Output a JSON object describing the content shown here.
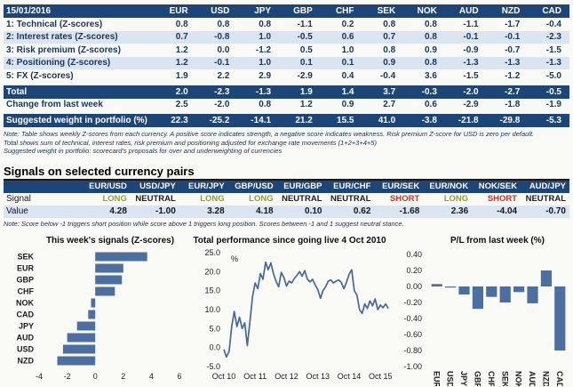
{
  "colors": {
    "navy_header": "#1e4577",
    "row_alt": "#dbe5f1",
    "text_navy": "#17365c",
    "bar_blue": "#4d6f9f",
    "line_blue": "#46689b",
    "long_green": "#8f9d3a",
    "short_red": "#c43528",
    "neutral_dark": "#1c1c24"
  },
  "scorecard": {
    "date": "15/01/2016",
    "currencies": [
      "EUR",
      "USD",
      "JPY",
      "GBP",
      "CHF",
      "SEK",
      "NOK",
      "AUD",
      "NZD",
      "CAD"
    ],
    "rows": [
      {
        "label": "1: Technical (Z-scores)",
        "values": [
          "0.8",
          "0.8",
          "0.8",
          "-1.1",
          "0.2",
          "0.8",
          "0.8",
          "-1.1",
          "-1.7",
          "-0.4"
        ]
      },
      {
        "label": "2: Interest rates (Z-scores)",
        "values": [
          "0.7",
          "-0.8",
          "1.0",
          "-0.5",
          "0.6",
          "0.7",
          "0.8",
          "-0.1",
          "-0.1",
          "-2.3"
        ]
      },
      {
        "label": "3: Risk premium (Z-scores)",
        "values": [
          "1.2",
          "0.0",
          "-1.2",
          "0.5",
          "1.0",
          "0.8",
          "0.9",
          "-0.9",
          "-0.7",
          "-1.5"
        ]
      },
      {
        "label": "4: Positioning (Z-scores)",
        "values": [
          "1.2",
          "-0.1",
          "1.0",
          "0.1",
          "0.1",
          "0.9",
          "0.8",
          "-1.3",
          "-1.3",
          "-1.3"
        ]
      },
      {
        "label": "5: FX (Z-scores)",
        "values": [
          "1.9",
          "2.2",
          "2.9",
          "-2.9",
          "0.4",
          "-0.4",
          "3.6",
          "-1.5",
          "-1.2",
          "-5.0"
        ]
      }
    ],
    "total": {
      "label": "Total",
      "values": [
        "2.0",
        "-2.3",
        "-1.3",
        "1.9",
        "1.4",
        "3.7",
        "-0.3",
        "-2.0",
        "-2.7",
        "-0.5"
      ]
    },
    "change": {
      "label": "Change from last week",
      "values": [
        "2.5",
        "-2.0",
        "0.8",
        "1.2",
        "0.9",
        "2.7",
        "0.6",
        "-2.9",
        "-1.8",
        "-1.9"
      ]
    },
    "weight": {
      "label": "Suggested weight in portfolio (%)",
      "values": [
        "22.3",
        "-25.2",
        "-14.1",
        "21.2",
        "15.5",
        "41.0",
        "-3.8",
        "-21.8",
        "-29.8",
        "-5.3"
      ]
    },
    "notes": [
      "Note: Table shows weekly Z-scores from each currency. A positive score indicates strength, a negative score indicates weakness. Risk premium Z-score for USD is zero per default.",
      "Total shows sum of technical, interest rates, risk premium and positioning adjusted for exchange rate movements (1+2+3+4+5)",
      "Suggested weight in portfolio: scorecard's proposals for over and underweighting of currencies"
    ]
  },
  "signals": {
    "title": "Signals on selected currency pairs",
    "pairs": [
      "EUR/USD",
      "USD/JPY",
      "EUR/JPY",
      "GBP/USD",
      "EUR/GBP",
      "EUR/CHF",
      "EUR/SEK",
      "EUR/NOK",
      "NOK/SEK",
      "AUD/JPY"
    ],
    "signal_label": "Signal",
    "value_label": "Value",
    "signals": [
      "LONG",
      "NEUTRAL",
      "LONG",
      "LONG",
      "NEUTRAL",
      "NEUTRAL",
      "SHORT",
      "LONG",
      "SHORT",
      "NEUTRAL"
    ],
    "values": [
      "4.28",
      "-1.00",
      "3.28",
      "4.18",
      "0.10",
      "0.62",
      "-1.68",
      "2.36",
      "-4.04",
      "-0.70"
    ],
    "note": "Note: Score below -1 triggers short position while score above 1 triggers long position. Scores between -1 and 1 suggest neutral stance."
  },
  "chart_data": [
    {
      "type": "bar",
      "orientation": "horizontal",
      "title": "This week's signals (Z-scores)",
      "categories": [
        "SEK",
        "EUR",
        "GBP",
        "CHF",
        "NOK",
        "CAD",
        "JPY",
        "AUD",
        "USD",
        "NZD"
      ],
      "values": [
        3.7,
        2.0,
        1.9,
        1.4,
        -0.3,
        -0.5,
        -1.3,
        -2.0,
        -2.3,
        -2.7
      ],
      "xlim": [
        -4,
        6
      ],
      "xticks": [
        -4,
        -2,
        0,
        2,
        4,
        6
      ],
      "grid": false,
      "legend": "none"
    },
    {
      "type": "line",
      "title": "Total performance since going live 4 Oct 2010",
      "ylabel": "%",
      "ylim": [
        -5,
        25
      ],
      "yticks": [
        25,
        20,
        15,
        10,
        5,
        0,
        -5
      ],
      "xticklabels": [
        "Oct 10",
        "Oct 11",
        "Oct 12",
        "Oct 13",
        "Oct 14",
        "Oct 15"
      ],
      "xtick_months": [
        0,
        12,
        24,
        36,
        48,
        60
      ],
      "y_monthly_pct": [
        -0.5,
        -2.5,
        -1.0,
        5.5,
        9.5,
        5.5,
        8.0,
        5.0,
        6.5,
        0.5,
        7.0,
        13.5,
        17.0,
        15.5,
        19.5,
        18.0,
        22.5,
        20.5,
        22.3,
        19.5,
        17.5,
        16.0,
        19.8,
        18.5,
        16.2,
        17.5,
        17.0,
        18.2,
        19.0,
        20.0,
        18.8,
        20.3,
        18.0,
        17.3,
        18.0,
        16.5,
        15.3,
        13.0,
        15.0,
        16.0,
        17.5,
        17.8,
        17.0,
        17.5,
        17.8,
        17.2,
        15.5,
        17.2,
        19.3,
        20.5,
        15.0,
        13.8,
        10.0,
        9.0,
        11.5,
        10.3,
        12.3,
        11.0,
        12.8,
        10.0,
        11.2,
        10.5,
        11.5,
        10.3
      ],
      "grid": false,
      "legend": "none"
    },
    {
      "type": "bar",
      "orientation": "vertical",
      "title": "P/L from last week (%)",
      "categories": [
        "EUR",
        "USD",
        "JPY",
        "GBP",
        "CHF",
        "SEK",
        "NOK",
        "AUD",
        "NZD",
        "CAD"
      ],
      "values": [
        0.03,
        0.0,
        -0.1,
        -0.28,
        -0.13,
        -0.2,
        -0.07,
        -0.21,
        0.2,
        -0.8
      ],
      "ylim": [
        -1.0,
        0.4
      ],
      "yticks": [
        0.4,
        0.2,
        0.0,
        -0.2,
        -0.4,
        -0.6,
        -0.8,
        -1.0
      ],
      "grid": false,
      "legend": "none"
    }
  ]
}
